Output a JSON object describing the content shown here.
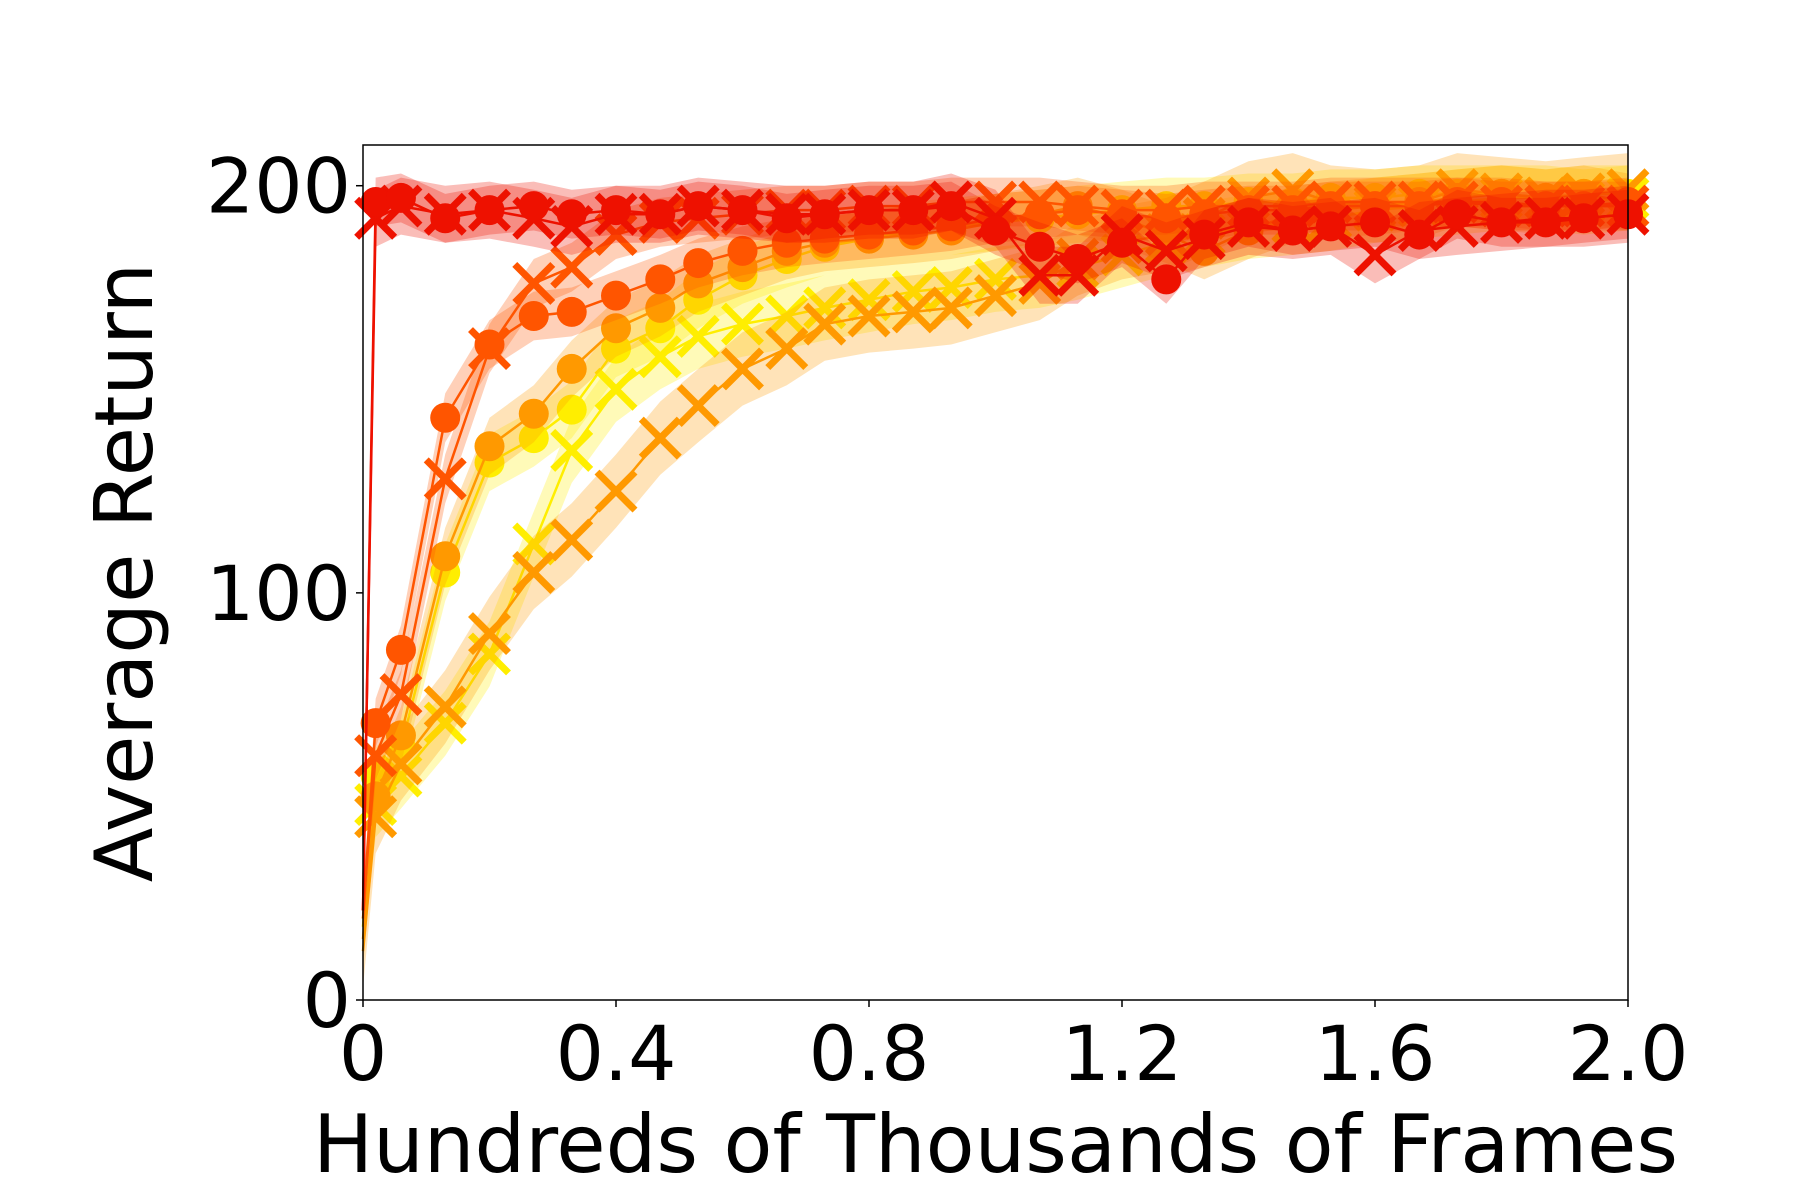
{
  "chart_data": {
    "type": "line",
    "xlabel": "Hundreds of Thousands of Frames",
    "ylabel": "Average Return",
    "xlim": [
      0,
      2.0
    ],
    "ylim": [
      0,
      210
    ],
    "x_ticks": [
      {
        "value": 0,
        "label": "0"
      },
      {
        "value": 0.4,
        "label": "0.4"
      },
      {
        "value": 0.8,
        "label": "0.8"
      },
      {
        "value": 1.2,
        "label": "1.2"
      },
      {
        "value": 1.6,
        "label": "1.6"
      },
      {
        "value": 2.0,
        "label": "2.0"
      }
    ],
    "y_ticks": [
      {
        "value": 0,
        "label": "0"
      },
      {
        "value": 100,
        "label": "100"
      },
      {
        "value": 200,
        "label": "200"
      }
    ],
    "grid": false,
    "legend": "none",
    "series": [
      {
        "color": "#ffee00",
        "marker": "x",
        "x": [
          0.0,
          0.02,
          0.06,
          0.13,
          0.2,
          0.27,
          0.33,
          0.4,
          0.47,
          0.53,
          0.6,
          0.67,
          0.73,
          0.8,
          0.87,
          0.93,
          1.0,
          1.07,
          1.13,
          1.2,
          1.27,
          1.33,
          1.4,
          1.47,
          1.53,
          1.6,
          1.67,
          1.73,
          1.8,
          1.87,
          1.93,
          2.0
        ],
        "y": [
          20,
          48,
          55,
          68,
          85,
          112,
          135,
          150,
          158,
          163,
          166,
          168,
          170,
          172,
          174,
          175,
          177,
          178,
          180,
          183,
          186,
          188,
          190,
          191,
          192,
          194,
          195,
          196,
          197,
          197,
          196,
          197
        ],
        "band": 8
      },
      {
        "color": "#ffee00",
        "marker": "o",
        "x": [
          0.0,
          0.02,
          0.06,
          0.13,
          0.2,
          0.27,
          0.33,
          0.4,
          0.47,
          0.53,
          0.6,
          0.67,
          0.73,
          0.8,
          0.87,
          0.93,
          1.0,
          1.07,
          1.13,
          1.2,
          1.27,
          1.33,
          1.4,
          1.47,
          1.53,
          1.6,
          1.67,
          1.73,
          1.8,
          1.87,
          1.93,
          2.0
        ],
        "y": [
          18,
          55,
          62,
          105,
          132,
          138,
          145,
          160,
          165,
          172,
          178,
          182,
          185,
          187,
          189,
          190,
          191,
          192,
          193,
          194,
          195,
          195,
          196,
          196,
          197,
          197,
          198,
          198,
          198,
          197,
          198,
          198
        ],
        "band": 7
      },
      {
        "color": "#ff9900",
        "marker": "x",
        "x": [
          0.0,
          0.02,
          0.06,
          0.13,
          0.2,
          0.27,
          0.33,
          0.4,
          0.47,
          0.53,
          0.6,
          0.67,
          0.73,
          0.8,
          0.87,
          0.93,
          1.0,
          1.07,
          1.13,
          1.2,
          1.27,
          1.33,
          1.4,
          1.47,
          1.53,
          1.6,
          1.67,
          1.73,
          1.8,
          1.87,
          1.93,
          2.0
        ],
        "y": [
          12,
          45,
          58,
          72,
          90,
          105,
          113,
          125,
          138,
          146,
          155,
          160,
          166,
          168,
          169,
          170,
          173,
          176,
          182,
          186,
          188,
          192,
          197,
          199,
          196,
          195,
          196,
          199,
          198,
          197,
          198,
          199
        ],
        "band": 9
      },
      {
        "color": "#ff9900",
        "marker": "o",
        "x": [
          0.0,
          0.02,
          0.06,
          0.13,
          0.2,
          0.27,
          0.33,
          0.4,
          0.47,
          0.53,
          0.6,
          0.67,
          0.73,
          0.8,
          0.87,
          0.93,
          1.0,
          1.07,
          1.13,
          1.2,
          1.27,
          1.33,
          1.4,
          1.47,
          1.53,
          1.6,
          1.67,
          1.73,
          1.8,
          1.87,
          1.93,
          2.0
        ],
        "y": [
          15,
          50,
          65,
          109,
          136,
          144,
          155,
          165,
          170,
          176,
          180,
          184,
          186,
          187,
          188,
          189,
          191,
          193,
          195,
          192,
          188,
          184,
          189,
          193,
          194,
          195,
          196,
          197,
          198,
          197,
          198,
          196
        ],
        "band": 7
      },
      {
        "color": "#ff5500",
        "marker": "x",
        "x": [
          0.0,
          0.02,
          0.06,
          0.13,
          0.2,
          0.27,
          0.33,
          0.4,
          0.47,
          0.53,
          0.6,
          0.67,
          0.73,
          0.8,
          0.87,
          0.93,
          1.0,
          1.07,
          1.13,
          1.2,
          1.27,
          1.33,
          1.4,
          1.47,
          1.53,
          1.6,
          1.67,
          1.73,
          1.8,
          1.87,
          1.93,
          2.0
        ],
        "y": [
          22,
          60,
          75,
          128,
          160,
          176,
          180,
          188,
          191,
          192,
          193,
          194,
          194,
          195,
          195,
          196,
          196,
          196,
          195,
          194,
          194,
          195,
          195,
          195,
          196,
          196,
          196,
          196,
          195,
          195,
          195,
          195
        ],
        "band": 6
      },
      {
        "color": "#ff5500",
        "marker": "o",
        "x": [
          0.0,
          0.02,
          0.06,
          0.13,
          0.2,
          0.27,
          0.33,
          0.4,
          0.47,
          0.53,
          0.6,
          0.67,
          0.73,
          0.8,
          0.87,
          0.93,
          1.0,
          1.07,
          1.13,
          1.2,
          1.27,
          1.33,
          1.4,
          1.47,
          1.53,
          1.6,
          1.67,
          1.73,
          1.8,
          1.87,
          1.93,
          2.0
        ],
        "y": [
          20,
          68,
          86,
          143,
          161,
          168,
          169,
          173,
          177,
          181,
          184,
          186,
          187,
          188,
          189,
          190,
          192,
          193,
          194,
          193,
          192,
          193,
          194,
          194,
          195,
          195,
          195,
          196,
          196,
          195,
          195,
          196
        ],
        "band": 6
      },
      {
        "color": "#ee1100",
        "marker": "x",
        "x": [
          0.0,
          0.02,
          0.06,
          0.13,
          0.2,
          0.27,
          0.33,
          0.4,
          0.47,
          0.53,
          0.6,
          0.67,
          0.73,
          0.8,
          0.87,
          0.93,
          1.0,
          1.07,
          1.13,
          1.2,
          1.27,
          1.33,
          1.4,
          1.47,
          1.53,
          1.6,
          1.67,
          1.73,
          1.8,
          1.87,
          1.93,
          2.0
        ],
        "y": [
          22,
          192,
          195,
          193,
          194,
          192,
          190,
          193,
          193,
          195,
          194,
          193,
          193,
          194,
          194,
          196,
          192,
          178,
          178,
          188,
          184,
          187,
          190,
          189,
          190,
          183,
          189,
          190,
          191,
          192,
          192,
          193
        ],
        "band": 7
      },
      {
        "color": "#ee1100",
        "marker": "o",
        "x": [
          0.0,
          0.02,
          0.06,
          0.13,
          0.2,
          0.27,
          0.33,
          0.4,
          0.47,
          0.53,
          0.6,
          0.67,
          0.73,
          0.8,
          0.87,
          0.93,
          1.0,
          1.07,
          1.13,
          1.2,
          1.27,
          1.33,
          1.4,
          1.47,
          1.53,
          1.6,
          1.67,
          1.73,
          1.8,
          1.87,
          1.93,
          2.0
        ],
        "y": [
          22,
          196,
          197,
          192,
          194,
          195,
          193,
          194,
          193,
          195,
          194,
          192,
          193,
          194,
          194,
          195,
          189,
          185,
          182,
          186,
          177,
          188,
          191,
          189,
          190,
          191,
          188,
          193,
          191,
          191,
          192,
          193
        ],
        "band": 6
      }
    ]
  }
}
